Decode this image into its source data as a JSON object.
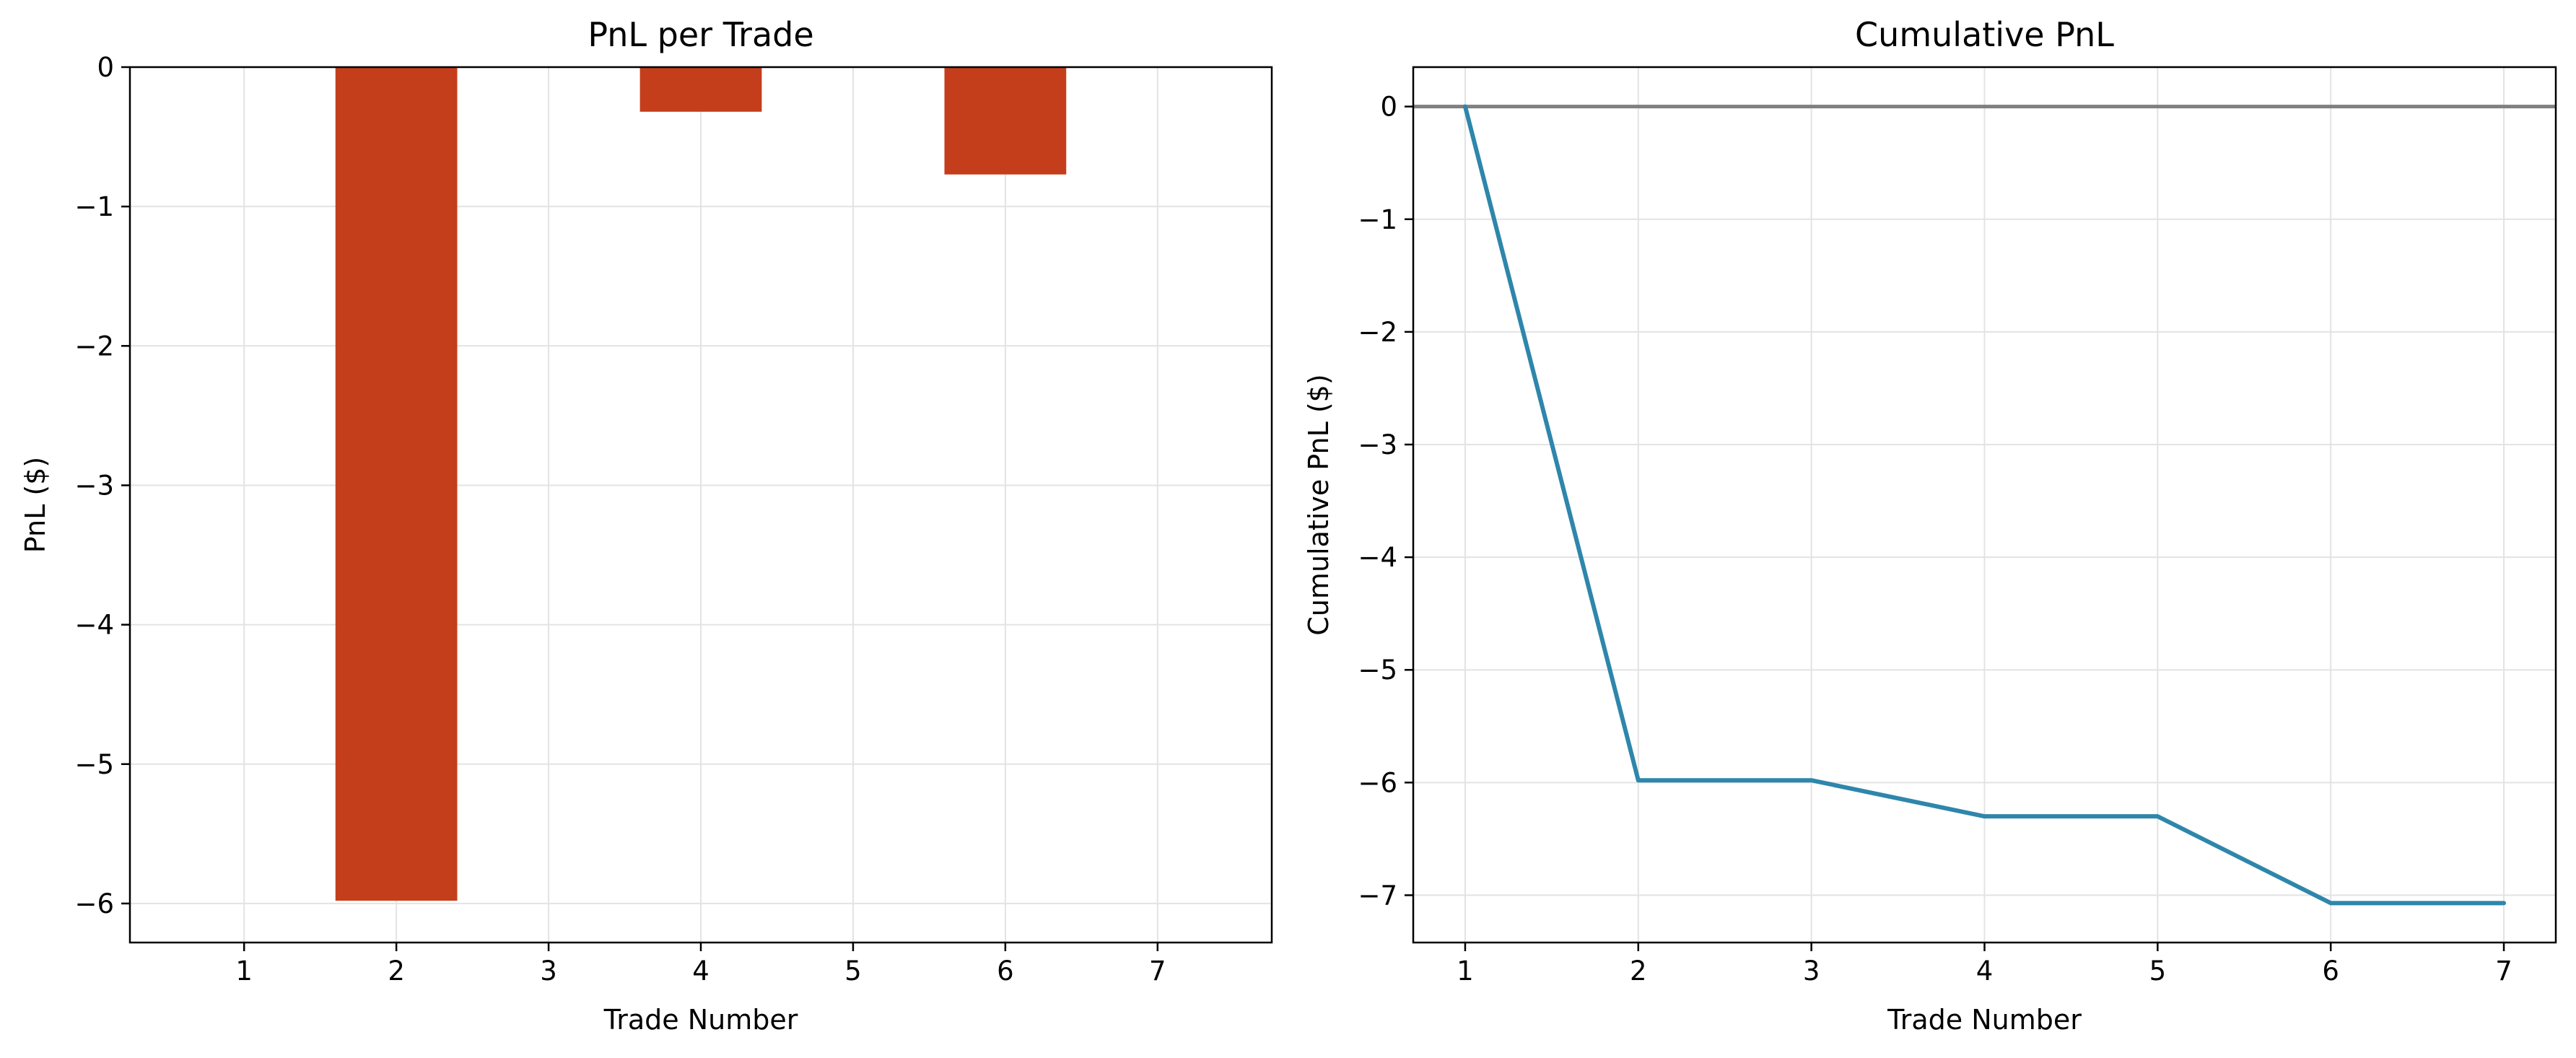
{
  "chart_data": [
    {
      "type": "bar",
      "title": "PnL per Trade",
      "xlabel": "Trade Number",
      "ylabel": "PnL ($)",
      "categories": [
        1,
        2,
        3,
        4,
        5,
        6,
        7
      ],
      "values": [
        0,
        -5.98,
        0,
        -0.32,
        0,
        -0.77,
        0
      ],
      "xlim": [
        0.25,
        7.75
      ],
      "ylim": [
        -6.28,
        0
      ],
      "xticks": [
        "1",
        "2",
        "3",
        "4",
        "5",
        "6",
        "7"
      ],
      "yticks": [
        0,
        -1,
        -2,
        -3,
        -4,
        -5,
        -6
      ],
      "ytick_labels": [
        "0",
        "−1",
        "−2",
        "−3",
        "−4",
        "−5",
        "−6"
      ],
      "bar_color": "#c43e1c",
      "grid": true
    },
    {
      "type": "line",
      "title": "Cumulative PnL",
      "xlabel": "Trade Number",
      "ylabel": "Cumulative PnL ($)",
      "x": [
        1,
        2,
        3,
        4,
        5,
        6,
        7
      ],
      "y": [
        0,
        -5.98,
        -5.98,
        -6.3,
        -6.3,
        -7.07,
        -7.07
      ],
      "xlim": [
        0.7,
        7.3
      ],
      "ylim": [
        -7.42,
        0.35
      ],
      "xticks": [
        "1",
        "2",
        "3",
        "4",
        "5",
        "6",
        "7"
      ],
      "yticks": [
        0,
        -1,
        -2,
        -3,
        -4,
        -5,
        -6,
        -7
      ],
      "ytick_labels": [
        "0",
        "−1",
        "−2",
        "−3",
        "−4",
        "−5",
        "−6",
        "−7"
      ],
      "line_color": "#2e86ab",
      "zero_line": 0,
      "zero_line_color": "#808080",
      "grid": true
    }
  ]
}
